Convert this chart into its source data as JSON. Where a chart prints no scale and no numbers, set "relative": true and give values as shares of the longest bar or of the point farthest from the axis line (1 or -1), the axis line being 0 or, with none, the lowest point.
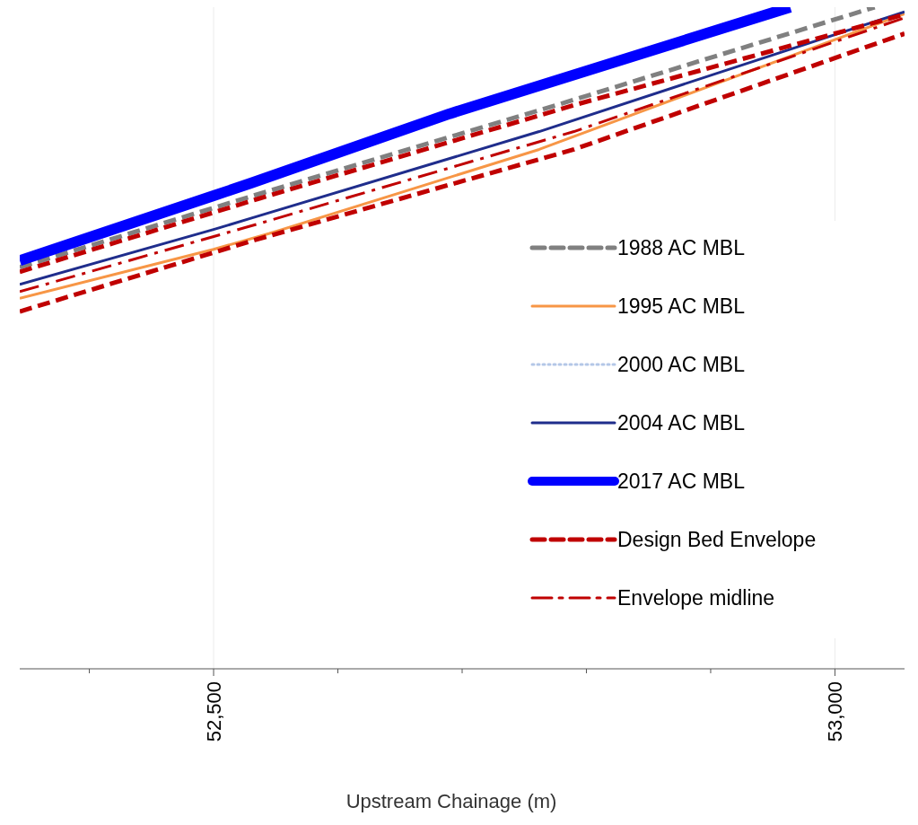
{
  "chart_data": {
    "type": "line",
    "relative": true,
    "xlabel": "Upstream Chainage (m)",
    "xlim": [
      52344,
      53056
    ],
    "xticks": [
      {
        "value": 52400,
        "label": null
      },
      {
        "value": 52500,
        "label": "52,500"
      },
      {
        "value": 52600,
        "label": null
      },
      {
        "value": 52700,
        "label": null
      },
      {
        "value": 52800,
        "label": null
      },
      {
        "value": 52900,
        "label": null
      },
      {
        "value": 53000,
        "label": "53,000"
      }
    ],
    "tick_labels": "x",
    "grid": "x",
    "legend": "right",
    "series": [
      {
        "name": "1988 AC MBL",
        "color": "#808080",
        "line_style": "dashed",
        "x": [
          52344,
          52530,
          52776,
          53032
        ],
        "values": [
          0.607,
          0.714,
          0.852,
          1.0
        ]
      },
      {
        "name": "1995 AC MBL",
        "color": "#f79646",
        "line_style": "solid",
        "x": [
          52344,
          52500,
          52545,
          52762,
          53056
        ],
        "values": [
          0.56,
          0.634,
          0.658,
          0.785,
          0.99
        ]
      },
      {
        "name": "2000 AC MBL",
        "color": "#b4c7e7",
        "line_style": "dotted",
        "values": [
          null,
          null,
          null,
          null
        ]
      },
      {
        "name": "2004 AC MBL",
        "color": "#1f2d8c",
        "line_style": "solid",
        "x": [
          52344,
          52500,
          52530,
          52762,
          53056
        ],
        "values": [
          0.581,
          0.664,
          0.681,
          0.812,
          0.993
        ]
      },
      {
        "name": "2017 AC MBL",
        "color": "#0000ff",
        "line_style": "solid",
        "x": [
          52344,
          52500,
          52530,
          52690,
          52964
        ],
        "values": [
          0.617,
          0.715,
          0.734,
          0.839,
          1.0
        ]
      },
      {
        "name": "Design Bed Envelope",
        "color": "#c00000",
        "line_style": "dashed",
        "x": [
          52344,
          52537,
          52790,
          53056
        ],
        "values": [
          0.6,
          0.711,
          0.852,
          0.989
        ]
      },
      {
        "color": "#c00000",
        "line_style": "dashed",
        "x": [
          52344,
          52533,
          52790,
          53056
        ],
        "values": [
          0.54,
          0.648,
          0.785,
          0.96
        ]
      },
      {
        "name": "Envelope midline",
        "color": "#c00000",
        "line_style": "dashdot",
        "x": [
          52344,
          52533,
          52790,
          53056
        ],
        "values": [
          0.57,
          0.671,
          0.812,
          0.984
        ]
      }
    ]
  }
}
